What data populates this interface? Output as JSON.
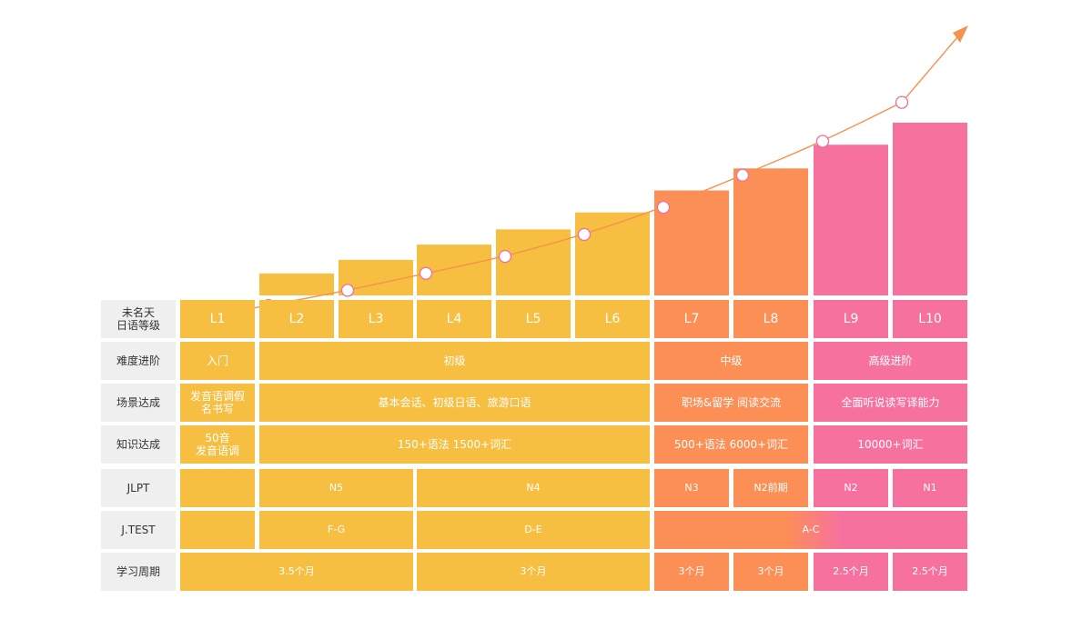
{
  "colors": {
    "yellow": "#F6BF42",
    "orange": "#FC8F56",
    "pink": "#F7719F",
    "header": "#EFEFEF",
    "line": "#F7914E",
    "marker": "#F06EA0"
  },
  "chart_data": {
    "type": "bar",
    "categories": [
      "L1",
      "L2",
      "L3",
      "L4",
      "L5",
      "L6",
      "L7",
      "L8",
      "L9",
      "L10"
    ],
    "values": [
      0,
      1.3,
      2.1,
      3,
      3.9,
      4.9,
      6.2,
      7.5,
      8.9,
      10.2
    ],
    "trend": [
      -1.4,
      -0.6,
      0.3,
      1.3,
      2.3,
      3.6,
      5.2,
      7.1,
      9.1,
      11.4
    ],
    "bar_colors": [
      "yellow",
      "yellow",
      "yellow",
      "yellow",
      "yellow",
      "yellow",
      "orange",
      "orange",
      "pink",
      "pink"
    ],
    "ylim": [
      0,
      10.2
    ],
    "grid": false,
    "title": "",
    "xlabel": "",
    "ylabel": ""
  },
  "rows": [
    {
      "header": "未名天\n日语等级",
      "cells": []
    },
    {
      "header": "难度进阶",
      "cells": [
        {
          "text": "入门",
          "span": [
            0,
            0
          ],
          "color": "yellow"
        },
        {
          "text": "初级",
          "span": [
            1,
            5
          ],
          "color": "yellow"
        },
        {
          "text": "中级",
          "span": [
            6,
            7
          ],
          "color": "orange"
        },
        {
          "text": "高级进阶",
          "span": [
            8,
            9
          ],
          "color": "pink"
        }
      ]
    },
    {
      "header": "场景达成",
      "cells": [
        {
          "text": "发音语调假\n名书写",
          "span": [
            0,
            0
          ],
          "color": "yellow"
        },
        {
          "text": "基本会话、初级日语、旅游口语",
          "span": [
            1,
            5
          ],
          "color": "yellow"
        },
        {
          "text": "职场&留学 阅读交流",
          "span": [
            6,
            7
          ],
          "color": "orange"
        },
        {
          "text": "全面听说读写译能力",
          "span": [
            8,
            9
          ],
          "color": "pink"
        }
      ]
    },
    {
      "header": "知识达成",
      "cells": [
        {
          "text": "50音\n发音语调",
          "span": [
            0,
            0
          ],
          "color": "yellow"
        },
        {
          "text": "150+语法 1500+词汇",
          "span": [
            1,
            5
          ],
          "color": "yellow"
        },
        {
          "text": "500+语法 6000+词汇",
          "span": [
            6,
            7
          ],
          "color": "orange"
        },
        {
          "text": "10000+词汇",
          "span": [
            8,
            9
          ],
          "color": "pink"
        }
      ]
    },
    {
      "header": "JLPT",
      "cells": [
        {
          "text": "",
          "span": [
            0,
            0
          ],
          "color": "yellow"
        },
        {
          "text": "N5",
          "span": [
            1,
            2
          ],
          "color": "yellow"
        },
        {
          "text": "N4",
          "span": [
            3,
            5
          ],
          "color": "yellow"
        },
        {
          "text": "N3",
          "span": [
            6,
            6
          ],
          "color": "orange"
        },
        {
          "text": "N2前期",
          "span": [
            7,
            7
          ],
          "color": "orange"
        },
        {
          "text": "N2",
          "span": [
            8,
            8
          ],
          "color": "pink"
        },
        {
          "text": "N1",
          "span": [
            9,
            9
          ],
          "color": "pink"
        }
      ]
    },
    {
      "header": "J.TEST",
      "cells": [
        {
          "text": "",
          "span": [
            0,
            0
          ],
          "color": "yellow"
        },
        {
          "text": "F-G",
          "span": [
            1,
            2
          ],
          "color": "yellow"
        },
        {
          "text": "D-E",
          "span": [
            3,
            5
          ],
          "color": "yellow"
        },
        {
          "text": "A-C",
          "span": [
            6,
            9
          ],
          "color": "gradient"
        }
      ]
    },
    {
      "header": "学习周期",
      "cells": [
        {
          "text": "3.5个月",
          "span": [
            0,
            2
          ],
          "color": "yellow"
        },
        {
          "text": "3个月",
          "span": [
            3,
            5
          ],
          "color": "yellow"
        },
        {
          "text": "3个月",
          "span": [
            6,
            6
          ],
          "color": "orange"
        },
        {
          "text": "3个月",
          "span": [
            7,
            7
          ],
          "color": "orange"
        },
        {
          "text": "2.5个月",
          "span": [
            8,
            8
          ],
          "color": "pink"
        },
        {
          "text": "2.5个月",
          "span": [
            9,
            9
          ],
          "color": "pink"
        }
      ]
    }
  ]
}
